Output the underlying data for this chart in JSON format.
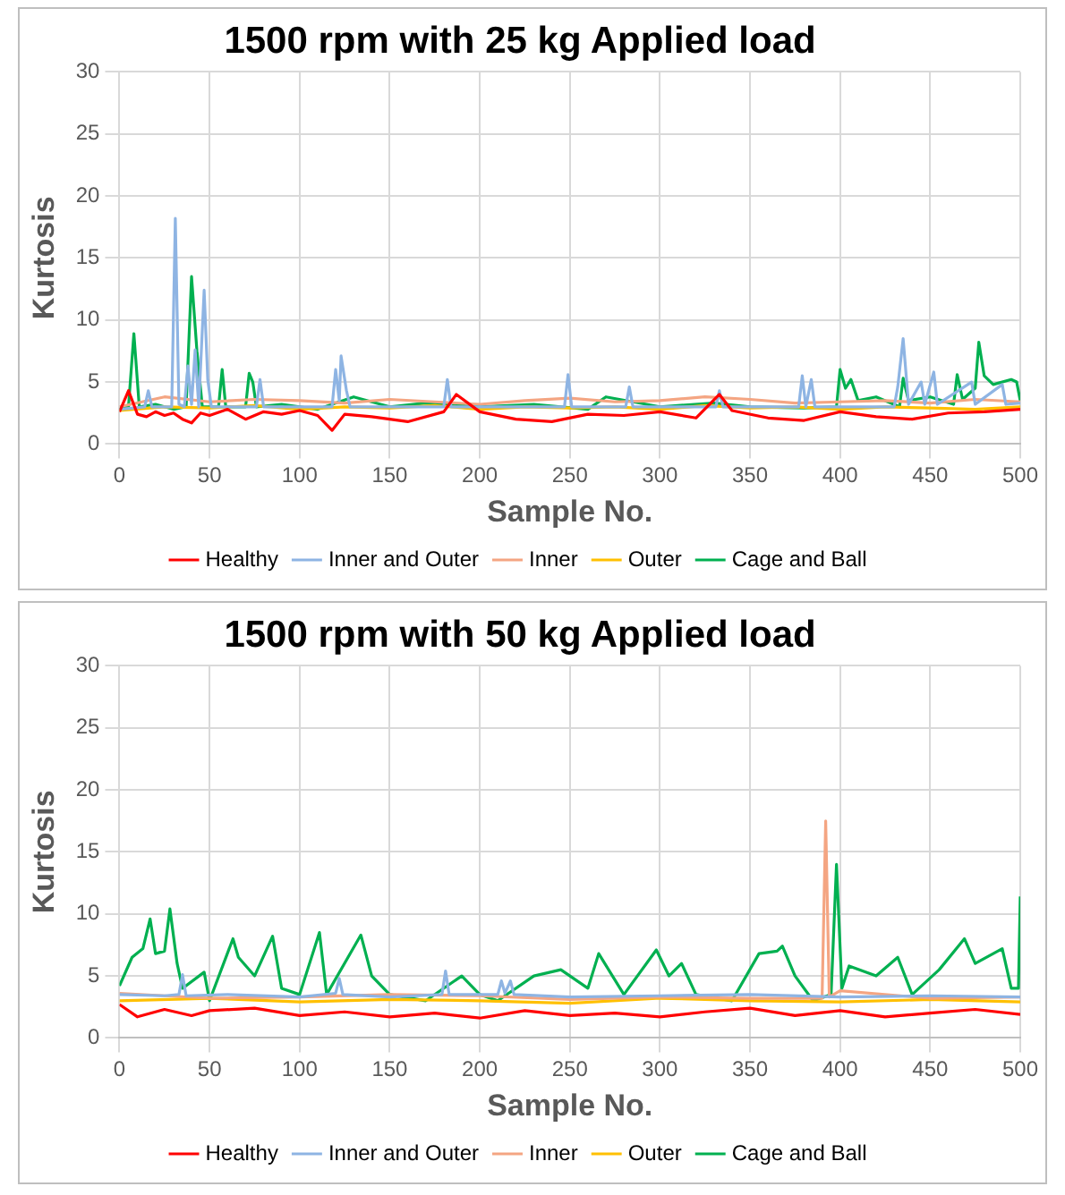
{
  "chart_data": [
    {
      "type": "line",
      "title": "1500 rpm with 25 kg Applied load",
      "xlabel": "Sample No.",
      "ylabel": "Kurtosis",
      "xlim": [
        0,
        500
      ],
      "xticks": [
        0,
        50,
        100,
        150,
        200,
        250,
        300,
        350,
        400,
        450,
        500
      ],
      "ylim": [
        0,
        30
      ],
      "yticks": [
        0,
        5,
        10,
        15,
        20,
        25,
        30
      ],
      "grid": true,
      "legend": "bottom",
      "series": [
        {
          "name": "Healthy",
          "color": "#ff0000",
          "x": [
            0,
            5,
            10,
            15,
            20,
            25,
            30,
            35,
            40,
            45,
            50,
            60,
            70,
            80,
            90,
            100,
            110,
            118,
            125,
            140,
            160,
            180,
            187,
            200,
            220,
            240,
            260,
            280,
            300,
            320,
            333,
            340,
            360,
            380,
            400,
            420,
            440,
            460,
            480,
            500
          ],
          "values": [
            2.6,
            4.3,
            2.4,
            2.2,
            2.6,
            2.3,
            2.5,
            2.0,
            1.7,
            2.5,
            2.3,
            2.8,
            2.0,
            2.6,
            2.4,
            2.7,
            2.3,
            1.1,
            2.4,
            2.2,
            1.8,
            2.6,
            4.0,
            2.6,
            2.0,
            1.8,
            2.4,
            2.3,
            2.6,
            2.1,
            4.0,
            2.7,
            2.1,
            1.9,
            2.6,
            2.2,
            2.0,
            2.5,
            2.6,
            2.8
          ]
        },
        {
          "name": "Inner and Outer",
          "color": "#8eb4e3",
          "x": [
            0,
            14,
            16,
            18,
            29,
            31,
            33,
            36,
            38,
            40,
            42,
            44,
            47,
            49,
            51,
            76,
            78,
            80,
            118,
            120,
            122,
            123,
            126,
            128,
            180,
            182,
            184,
            247,
            249,
            251,
            281,
            283,
            285,
            331,
            333,
            335,
            377,
            379,
            381,
            384,
            386,
            430,
            432,
            435,
            438,
            445,
            447,
            452,
            454,
            473,
            475,
            490,
            492,
            500
          ],
          "values": [
            2.8,
            3.0,
            4.3,
            3.0,
            3.0,
            18.2,
            3.2,
            3.0,
            6.3,
            3.2,
            7.6,
            3.0,
            12.4,
            5.2,
            3.0,
            3.0,
            5.2,
            3.0,
            3.0,
            6.0,
            3.5,
            7.1,
            4.3,
            3.0,
            3.0,
            5.2,
            3.0,
            3.0,
            5.6,
            3.0,
            3.0,
            4.6,
            3.0,
            3.0,
            4.3,
            3.0,
            3.0,
            5.5,
            3.0,
            5.2,
            3.0,
            3.0,
            4.6,
            8.5,
            3.2,
            5.0,
            3.2,
            5.8,
            3.2,
            5.0,
            3.2,
            4.8,
            3.2,
            3.3
          ]
        },
        {
          "name": "Inner",
          "color": "#f4a582",
          "x": [
            0,
            25,
            50,
            75,
            100,
            125,
            150,
            175,
            200,
            225,
            250,
            275,
            300,
            325,
            350,
            375,
            400,
            425,
            450,
            475,
            500
          ],
          "values": [
            3.0,
            3.8,
            3.4,
            3.6,
            3.5,
            3.3,
            3.6,
            3.4,
            3.2,
            3.5,
            3.7,
            3.4,
            3.5,
            3.8,
            3.6,
            3.3,
            3.4,
            3.5,
            3.3,
            3.6,
            3.4
          ]
        },
        {
          "name": "Outer",
          "color": "#ffc000",
          "x": [
            0,
            25,
            50,
            75,
            100,
            125,
            150,
            175,
            200,
            225,
            250,
            275,
            300,
            325,
            350,
            375,
            400,
            425,
            450,
            475,
            500
          ],
          "values": [
            2.7,
            3.0,
            2.9,
            3.1,
            2.8,
            3.0,
            2.9,
            3.1,
            2.8,
            3.0,
            2.9,
            3.0,
            2.8,
            3.1,
            2.9,
            3.0,
            2.8,
            3.0,
            2.9,
            2.8,
            3.0
          ]
        },
        {
          "name": "Cage and Ball",
          "color": "#00b050",
          "x": [
            0,
            5,
            8,
            11,
            20,
            30,
            37,
            40,
            43,
            46,
            55,
            57,
            59,
            70,
            72,
            74,
            76,
            90,
            110,
            130,
            150,
            170,
            200,
            230,
            260,
            270,
            300,
            330,
            350,
            380,
            398,
            400,
            403,
            406,
            410,
            420,
            433,
            435,
            438,
            450,
            463,
            465,
            468,
            475,
            477,
            480,
            485,
            495,
            498,
            500
          ],
          "values": [
            2.8,
            3.0,
            8.9,
            3.0,
            3.2,
            2.8,
            3.0,
            13.5,
            7.5,
            3.0,
            3.0,
            6.0,
            3.0,
            3.0,
            5.7,
            5.0,
            3.0,
            3.2,
            2.8,
            3.8,
            3.0,
            3.3,
            3.0,
            3.2,
            2.8,
            3.8,
            3.0,
            3.3,
            3.0,
            2.9,
            3.0,
            6.0,
            4.5,
            5.2,
            3.5,
            3.8,
            3.0,
            5.3,
            3.5,
            3.8,
            3.2,
            5.6,
            3.6,
            4.5,
            8.2,
            5.5,
            4.8,
            5.2,
            5.0,
            3.5
          ]
        }
      ]
    },
    {
      "type": "line",
      "title": "1500 rpm with 50 kg Applied load",
      "xlabel": "Sample No.",
      "ylabel": "Kurtosis",
      "xlim": [
        0,
        500
      ],
      "xticks": [
        0,
        50,
        100,
        150,
        200,
        250,
        300,
        350,
        400,
        450,
        500
      ],
      "ylim": [
        0,
        30
      ],
      "yticks": [
        0,
        5,
        10,
        15,
        20,
        25,
        30
      ],
      "grid": true,
      "legend": "bottom",
      "series": [
        {
          "name": "Healthy",
          "color": "#ff0000",
          "x": [
            0,
            10,
            25,
            40,
            50,
            75,
            100,
            125,
            150,
            175,
            200,
            225,
            250,
            275,
            300,
            325,
            350,
            375,
            400,
            425,
            450,
            475,
            500
          ],
          "values": [
            2.7,
            1.7,
            2.3,
            1.8,
            2.2,
            2.4,
            1.8,
            2.1,
            1.7,
            2.0,
            1.6,
            2.2,
            1.8,
            2.0,
            1.7,
            2.1,
            2.4,
            1.8,
            2.2,
            1.7,
            2.0,
            2.3,
            1.9
          ]
        },
        {
          "name": "Inner and Outer",
          "color": "#8eb4e3",
          "x": [
            0,
            25,
            33,
            35,
            37,
            60,
            100,
            120,
            122,
            124,
            150,
            179,
            181,
            183,
            210,
            212,
            214,
            217,
            219,
            250,
            300,
            350,
            400,
            450,
            500
          ],
          "values": [
            3.5,
            3.4,
            3.5,
            5.1,
            3.4,
            3.5,
            3.3,
            3.6,
            4.8,
            3.5,
            3.3,
            3.5,
            5.4,
            3.5,
            3.5,
            4.6,
            3.6,
            4.6,
            3.5,
            3.3,
            3.4,
            3.5,
            3.3,
            3.4,
            3.3
          ]
        },
        {
          "name": "Inner",
          "color": "#f4a582",
          "x": [
            0,
            50,
            100,
            150,
            200,
            250,
            300,
            350,
            390,
            392,
            394,
            400,
            450,
            500
          ],
          "values": [
            3.6,
            3.2,
            3.3,
            3.5,
            3.4,
            3.1,
            3.3,
            3.2,
            3.2,
            17.5,
            3.3,
            3.8,
            3.2,
            3.3
          ]
        },
        {
          "name": "Outer",
          "color": "#ffc000",
          "x": [
            0,
            50,
            100,
            150,
            200,
            250,
            300,
            350,
            400,
            450,
            500
          ],
          "values": [
            3.0,
            3.2,
            2.9,
            3.1,
            3.0,
            2.8,
            3.2,
            3.0,
            2.9,
            3.1,
            2.9
          ]
        },
        {
          "name": "Cage and Ball",
          "color": "#00b050",
          "x": [
            0,
            7,
            13,
            17,
            20,
            25,
            28,
            32,
            35,
            47,
            50,
            63,
            66,
            75,
            85,
            90,
            100,
            111,
            115,
            134,
            140,
            150,
            170,
            190,
            200,
            210,
            230,
            245,
            260,
            266,
            280,
            298,
            305,
            312,
            320,
            340,
            355,
            365,
            368,
            375,
            385,
            395,
            398,
            401,
            405,
            420,
            432,
            440,
            455,
            469,
            475,
            490,
            495,
            499,
            500
          ],
          "values": [
            4.2,
            6.5,
            7.2,
            9.6,
            6.8,
            7.0,
            10.4,
            6.0,
            4.0,
            5.3,
            3.0,
            8.0,
            6.5,
            5.0,
            8.2,
            4.0,
            3.5,
            8.5,
            3.5,
            8.3,
            5.0,
            3.5,
            3.0,
            5.0,
            3.5,
            3.0,
            5.0,
            5.5,
            4.0,
            6.8,
            3.5,
            7.1,
            5.0,
            6.0,
            3.5,
            3.0,
            6.8,
            7.0,
            7.4,
            5.0,
            3.0,
            3.5,
            14.0,
            4.0,
            5.8,
            5.0,
            6.5,
            3.5,
            5.5,
            8.0,
            6.0,
            7.2,
            4.0,
            4.0,
            11.4
          ]
        }
      ]
    }
  ]
}
